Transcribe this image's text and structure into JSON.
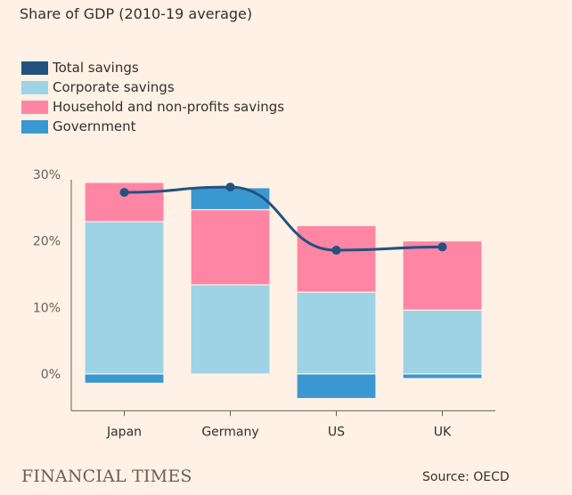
{
  "brand": "FINANCIAL TIMES",
  "source": "Source: OECD",
  "chart_data": {
    "type": "bar",
    "title": "Share of GDP (2010-19 average)",
    "categories": [
      "Japan",
      "Germany",
      "US",
      "UK"
    ],
    "stacked": true,
    "ylim": [
      -5,
      30
    ],
    "yticks": [
      0,
      10,
      20,
      30
    ],
    "ytick_labels": [
      "0%",
      "10%",
      "20%",
      "30%"
    ],
    "grid": false,
    "legend_position": "top-left",
    "series": [
      {
        "name": "Corporate savings",
        "type": "bar",
        "color": "#9dd3e5",
        "values": [
          22.9,
          13.4,
          12.3,
          9.6
        ]
      },
      {
        "name": "Household and non-profits savings",
        "type": "bar",
        "color": "#ff85a5",
        "values": [
          5.9,
          11.3,
          10.0,
          10.4
        ]
      },
      {
        "name": "Government",
        "type": "bar",
        "color": "#3a98d0",
        "values": [
          -1.4,
          3.3,
          -3.7,
          -0.7
        ]
      },
      {
        "name": "Total savings",
        "type": "line",
        "color": "#23527f",
        "values": [
          27.3,
          28.1,
          18.6,
          19.1
        ]
      }
    ],
    "legend_order": [
      "Total savings",
      "Corporate savings",
      "Household and non-profits savings",
      "Government"
    ]
  }
}
